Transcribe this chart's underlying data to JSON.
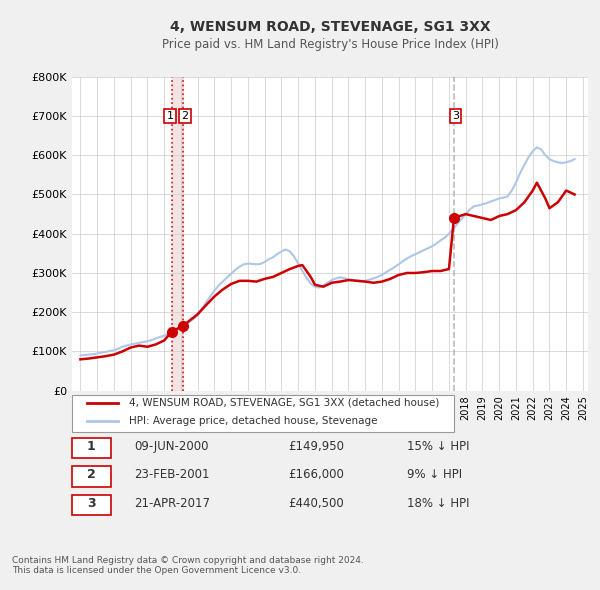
{
  "title": "4, WENSUM ROAD, STEVENAGE, SG1 3XX",
  "subtitle": "Price paid vs. HM Land Registry's House Price Index (HPI)",
  "background_color": "#f0f0f0",
  "plot_bg_color": "#ffffff",
  "ylabel": "",
  "ylim": [
    0,
    800000
  ],
  "yticks": [
    0,
    100000,
    200000,
    300000,
    400000,
    500000,
    600000,
    700000,
    800000
  ],
  "ytick_labels": [
    "£0",
    "£100K",
    "£200K",
    "£300K",
    "£400K",
    "£500K",
    "£600K",
    "£700K",
    "£800K"
  ],
  "x_start_year": 1995,
  "x_end_year": 2025,
  "hpi_line_color": "#aec6e8",
  "price_line_color": "#cc0000",
  "dot_color": "#cc0000",
  "vline_color": "#cc0000",
  "vline_style": "dotted",
  "vline_alpha": 0.7,
  "vline_fill_color": "#e8c8c8",
  "vline3_color": "#aaaaaa",
  "vline3_style": "dashed",
  "legend_label_price": "4, WENSUM ROAD, STEVENAGE, SG1 3XX (detached house)",
  "legend_label_hpi": "HPI: Average price, detached house, Stevenage",
  "transactions": [
    {
      "num": 1,
      "date": "09-JUN-2000",
      "year": 2000.44,
      "price": 149950,
      "pct": "15%",
      "dir": "↓"
    },
    {
      "num": 2,
      "date": "23-FEB-2001",
      "year": 2001.14,
      "price": 166000,
      "pct": "9%",
      "dir": "↓"
    },
    {
      "num": 3,
      "date": "21-APR-2017",
      "year": 2017.3,
      "price": 440500,
      "pct": "18%",
      "dir": "↓"
    }
  ],
  "footer": "Contains HM Land Registry data © Crown copyright and database right 2024.\nThis data is licensed under the Open Government Licence v3.0.",
  "hpi_data": {
    "years": [
      1995.0,
      1995.25,
      1995.5,
      1995.75,
      1996.0,
      1996.25,
      1996.5,
      1996.75,
      1997.0,
      1997.25,
      1997.5,
      1997.75,
      1998.0,
      1998.25,
      1998.5,
      1998.75,
      1999.0,
      1999.25,
      1999.5,
      1999.75,
      2000.0,
      2000.25,
      2000.5,
      2000.75,
      2001.0,
      2001.25,
      2001.5,
      2001.75,
      2002.0,
      2002.25,
      2002.5,
      2002.75,
      2003.0,
      2003.25,
      2003.5,
      2003.75,
      2004.0,
      2004.25,
      2004.5,
      2004.75,
      2005.0,
      2005.25,
      2005.5,
      2005.75,
      2006.0,
      2006.25,
      2006.5,
      2006.75,
      2007.0,
      2007.25,
      2007.5,
      2007.75,
      2008.0,
      2008.25,
      2008.5,
      2008.75,
      2009.0,
      2009.25,
      2009.5,
      2009.75,
      2010.0,
      2010.25,
      2010.5,
      2010.75,
      2011.0,
      2011.25,
      2011.5,
      2011.75,
      2012.0,
      2012.25,
      2012.5,
      2012.75,
      2013.0,
      2013.25,
      2013.5,
      2013.75,
      2014.0,
      2014.25,
      2014.5,
      2014.75,
      2015.0,
      2015.25,
      2015.5,
      2015.75,
      2016.0,
      2016.25,
      2016.5,
      2016.75,
      2017.0,
      2017.25,
      2017.5,
      2017.75,
      2018.0,
      2018.25,
      2018.5,
      2018.75,
      2019.0,
      2019.25,
      2019.5,
      2019.75,
      2020.0,
      2020.25,
      2020.5,
      2020.75,
      2021.0,
      2021.25,
      2021.5,
      2021.75,
      2022.0,
      2022.25,
      2022.5,
      2022.75,
      2023.0,
      2023.25,
      2023.5,
      2023.75,
      2024.0,
      2024.25,
      2024.5
    ],
    "values": [
      90000,
      91000,
      92000,
      93000,
      95000,
      97000,
      99000,
      101000,
      103000,
      107000,
      112000,
      115000,
      118000,
      120000,
      122000,
      124000,
      126000,
      129000,
      133000,
      137000,
      140000,
      145000,
      150000,
      155000,
      160000,
      167000,
      175000,
      183000,
      192000,
      208000,
      225000,
      240000,
      255000,
      268000,
      278000,
      288000,
      298000,
      308000,
      316000,
      322000,
      324000,
      323000,
      322000,
      323000,
      328000,
      335000,
      340000,
      348000,
      355000,
      360000,
      355000,
      342000,
      325000,
      305000,
      288000,
      273000,
      265000,
      263000,
      268000,
      275000,
      282000,
      286000,
      289000,
      287000,
      284000,
      282000,
      281000,
      280000,
      280000,
      283000,
      286000,
      290000,
      295000,
      302000,
      308000,
      315000,
      322000,
      330000,
      337000,
      343000,
      348000,
      353000,
      358000,
      363000,
      368000,
      375000,
      383000,
      390000,
      400000,
      412000,
      425000,
      438000,
      450000,
      462000,
      470000,
      472000,
      475000,
      478000,
      482000,
      486000,
      490000,
      492000,
      495000,
      510000,
      530000,
      555000,
      575000,
      595000,
      610000,
      620000,
      615000,
      600000,
      590000,
      585000,
      582000,
      580000,
      582000,
      585000,
      590000
    ]
  },
  "price_data": {
    "years": [
      1995.0,
      1995.5,
      1996.0,
      1996.5,
      1997.0,
      1997.5,
      1998.0,
      1998.5,
      1999.0,
      1999.5,
      2000.0,
      2000.44,
      2001.14,
      2002.0,
      2002.5,
      2003.0,
      2003.5,
      2004.0,
      2004.5,
      2005.0,
      2005.5,
      2006.0,
      2006.5,
      2007.0,
      2007.5,
      2008.0,
      2008.25,
      2008.75,
      2009.0,
      2009.5,
      2010.0,
      2010.5,
      2011.0,
      2011.5,
      2012.0,
      2012.5,
      2013.0,
      2013.5,
      2014.0,
      2014.5,
      2015.0,
      2015.5,
      2016.0,
      2016.5,
      2017.0,
      2017.3,
      2018.0,
      2018.5,
      2019.0,
      2019.5,
      2020.0,
      2020.5,
      2021.0,
      2021.5,
      2022.0,
      2022.25,
      2022.75,
      2023.0,
      2023.5,
      2024.0,
      2024.5
    ],
    "values": [
      80000,
      82000,
      85000,
      88000,
      92000,
      100000,
      110000,
      115000,
      112000,
      118000,
      128000,
      149950,
      166000,
      195000,
      218000,
      240000,
      258000,
      272000,
      280000,
      280000,
      278000,
      285000,
      290000,
      300000,
      310000,
      318000,
      320000,
      290000,
      270000,
      265000,
      275000,
      278000,
      282000,
      280000,
      278000,
      275000,
      278000,
      285000,
      295000,
      300000,
      300000,
      302000,
      305000,
      305000,
      310000,
      440500,
      450000,
      445000,
      440000,
      435000,
      445000,
      450000,
      460000,
      480000,
      510000,
      530000,
      490000,
      465000,
      480000,
      510000,
      500000
    ]
  }
}
